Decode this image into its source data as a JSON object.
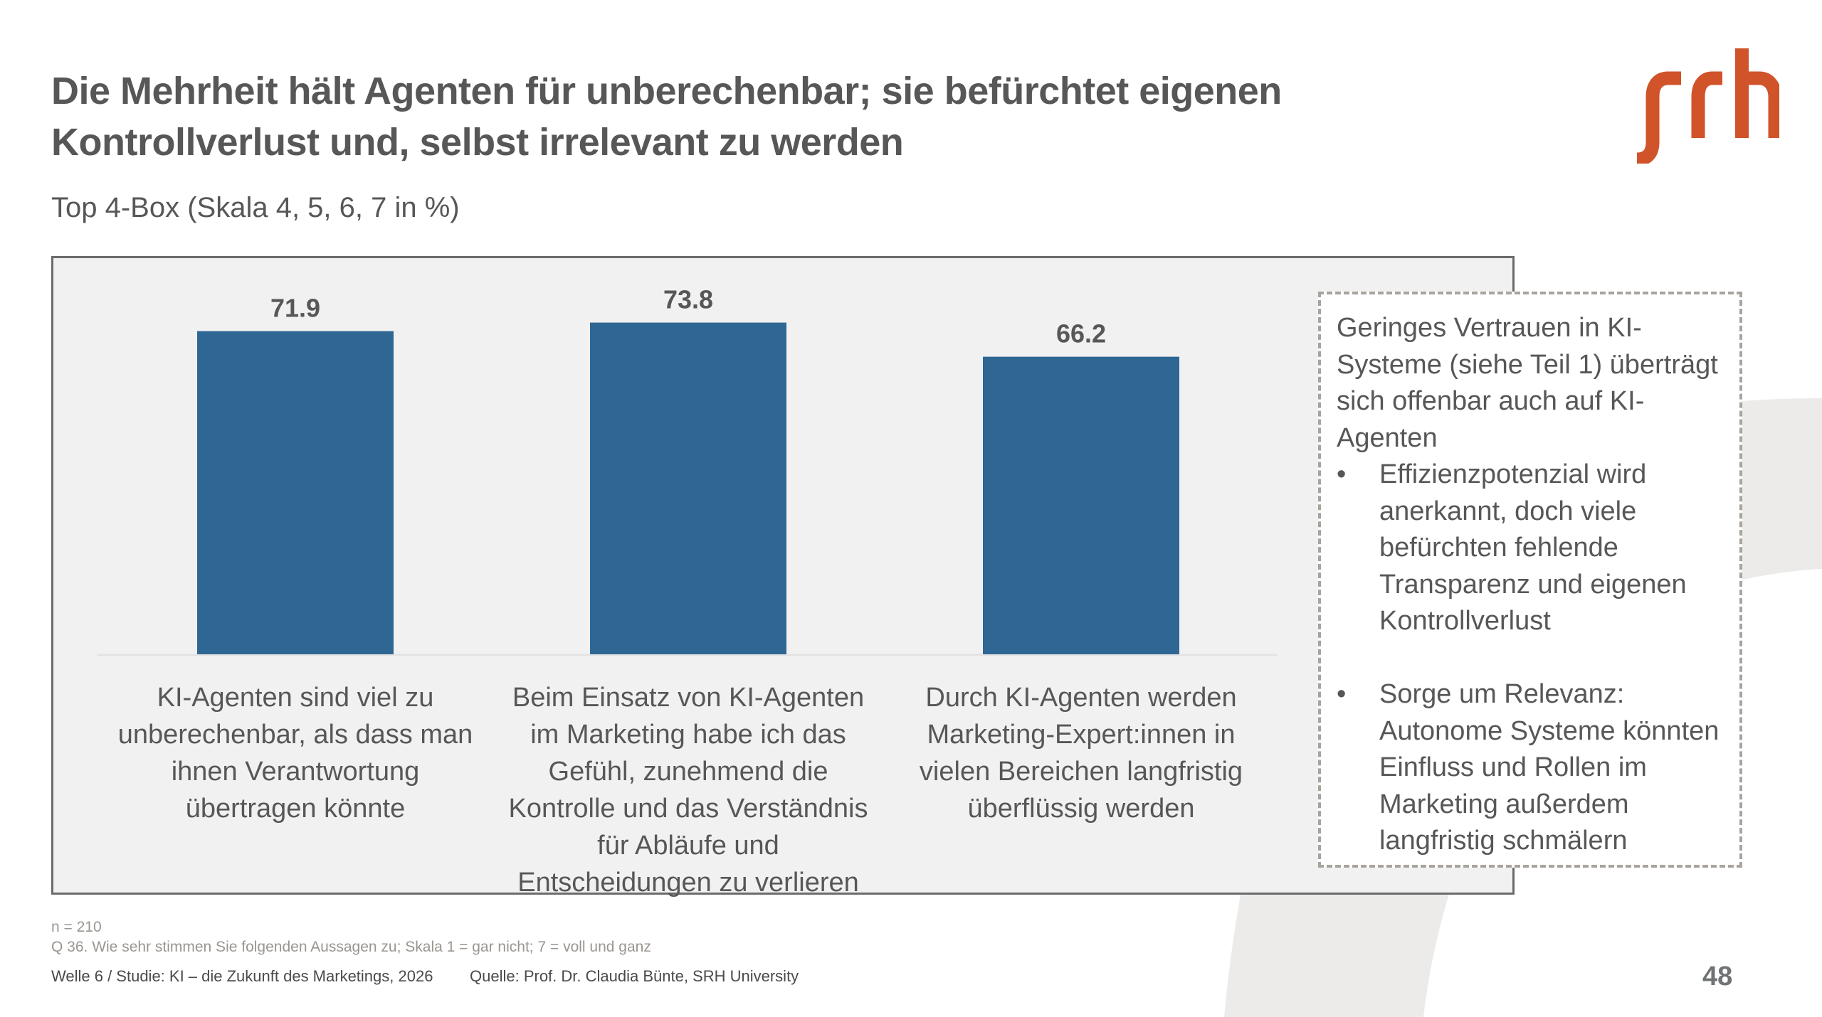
{
  "slide": {
    "title_line1": "Die Mehrheit hält Agenten für unberechenbar; sie befürchtet eigenen",
    "title_line2": "Kontrollverlust und, selbst irrelevant zu werden",
    "subtitle": "Top 4-Box (Skala 4, 5, 6, 7 in %)",
    "logo": {
      "text": "srh",
      "icon": "srh-logo",
      "color": "#D0532A"
    },
    "page_number": "48"
  },
  "chart_data": {
    "type": "bar",
    "title": "Top 4-Box (Skala 4, 5, 6, 7 in %)",
    "xlabel": "",
    "ylabel": "",
    "ylim": [
      0,
      100
    ],
    "grid": false,
    "legend": "none",
    "bar_color": "#2E6694",
    "categories": [
      "KI-Agenten sind viel zu unberechenbar, als dass man ihnen Verantwortung übertragen könnte",
      "Beim Einsatz von KI-Agenten im Marketing habe ich das Gefühl, zunehmend die Kontrolle und das Verständnis für Abläufe und Entscheidungen zu verlieren",
      "Durch KI-Agenten werden Marketing-Expert:innen in vielen Bereichen langfristig überflüssig werden"
    ],
    "values": [
      71.9,
      73.8,
      66.2
    ],
    "value_labels": [
      "71.9",
      "73.8",
      "66.2"
    ]
  },
  "note": {
    "intro": "Geringes Vertrauen in KI-Systeme (siehe Teil 1) überträgt sich offenbar  auch auf KI-Agenten",
    "bullets": [
      {
        "symbol": "•",
        "text": "Effizienzpotenzial wird anerkannt, doch viele befürchten fehlende Transparenz und eigenen Kontrollverlust"
      },
      {
        "symbol": "•",
        "text": "Sorge um Relevanz: Autonome Systeme könnten Einfluss und Rollen im Marketing außerdem langfristig schmälern"
      }
    ]
  },
  "footer": {
    "sample": "n = 210",
    "question": "Q 36. Wie sehr stimmen Sie folgenden Aussagen zu; Skala 1 = gar nicht; 7 = voll und ganz",
    "study": "Welle 6 / Studie: KI – die Zukunft des Marketings, 2026",
    "source": "Quelle: Prof. Dr. Claudia Bünte, SRH University"
  }
}
